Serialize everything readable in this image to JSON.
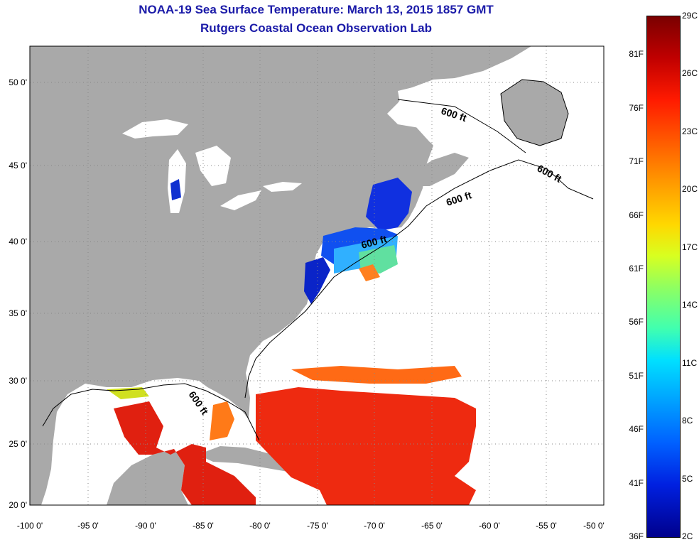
{
  "title": "NOAA-19 Sea Surface Temperature:  March 13, 2015 1857 GMT",
  "subtitle": "Rutgers Coastal Ocean Observation Lab",
  "lat_labels": [
    "50 0'",
    "45 0'",
    "40 0'",
    "35 0'",
    "30 0'",
    "25 0'",
    "20 0'"
  ],
  "lon_labels": [
    "-100 0'",
    "-95 0'",
    "-90 0'",
    "-85 0'",
    "-80 0'",
    "-75 0'",
    "-70 0'",
    "-65 0'",
    "-60 0'",
    "-55 0'",
    "-50 0'"
  ],
  "depth_label": "600 ft",
  "colorbar": {
    "fahrenheit": [
      "81F",
      "76F",
      "71F",
      "66F",
      "61F",
      "56F",
      "51F",
      "46F",
      "41F",
      "36F"
    ],
    "celsius": [
      "29C",
      "26C",
      "23C",
      "20C",
      "17C",
      "14C",
      "11C",
      "8C",
      "5C",
      "2C"
    ]
  },
  "colors": {
    "land": "#a9a9a9",
    "title": "#1a1aa8",
    "warm": "#ee2a10",
    "cold": "#1030e0"
  }
}
